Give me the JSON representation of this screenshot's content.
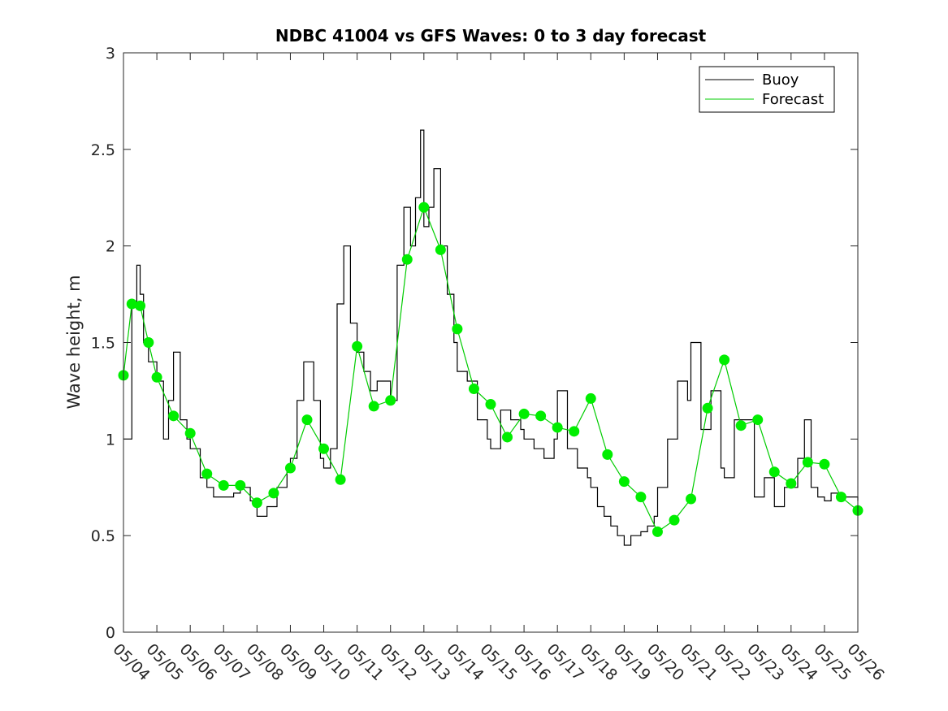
{
  "chart_data": {
    "type": "line",
    "title": "NDBC 41004 vs GFS Waves: 0 to 3 day forecast",
    "xlabel": "",
    "ylabel": "Wave height, m",
    "x_ticks": [
      "05/04",
      "05/05",
      "05/06",
      "05/07",
      "05/08",
      "05/09",
      "05/10",
      "05/11",
      "05/12",
      "05/13",
      "05/14",
      "05/15",
      "05/16",
      "05/17",
      "05/18",
      "05/19",
      "05/20",
      "05/21",
      "05/22",
      "05/23",
      "05/24",
      "05/25",
      "05/26"
    ],
    "xlim_days": [
      0,
      22
    ],
    "ylim": [
      0,
      3
    ],
    "y_ticks": [
      "0",
      "0.5",
      "1",
      "1.5",
      "2",
      "2.5",
      "3"
    ],
    "grid": false,
    "legend_position": "top-right",
    "colors": {
      "buoy": "#000000",
      "forecast": "#00cc00",
      "marker": "#00ee00"
    },
    "series": [
      {
        "name": "Buoy",
        "x": [
          0,
          0.25,
          0.4,
          0.5,
          0.6,
          0.75,
          1,
          1.2,
          1.35,
          1.5,
          1.7,
          1.9,
          2,
          2.3,
          2.5,
          2.7,
          3,
          3.3,
          3.5,
          3.8,
          4,
          4.3,
          4.6,
          4.9,
          5,
          5.2,
          5.4,
          5.7,
          5.9,
          6,
          6.2,
          6.4,
          6.6,
          6.8,
          7,
          7.2,
          7.4,
          7.6,
          7.8,
          8,
          8.2,
          8.4,
          8.6,
          8.75,
          8.9,
          9,
          9.15,
          9.3,
          9.5,
          9.7,
          9.9,
          10,
          10.3,
          10.6,
          10.9,
          11,
          11.3,
          11.6,
          11.9,
          12,
          12.3,
          12.6,
          12.9,
          13,
          13.3,
          13.6,
          13.9,
          14,
          14.2,
          14.4,
          14.6,
          14.8,
          15,
          15.2,
          15.5,
          15.7,
          15.9,
          16,
          16.3,
          16.6,
          16.9,
          17,
          17.3,
          17.6,
          17.9,
          18,
          18.3,
          18.6,
          18.9,
          19,
          19.2,
          19.5,
          19.8,
          20,
          20.2,
          20.4,
          20.6,
          20.8,
          21,
          21.2,
          21.5,
          21.8,
          22
        ],
        "values": [
          1.0,
          1.7,
          1.9,
          1.75,
          1.5,
          1.4,
          1.3,
          1.0,
          1.2,
          1.45,
          1.1,
          1.0,
          0.95,
          0.8,
          0.75,
          0.7,
          0.7,
          0.72,
          0.75,
          0.68,
          0.6,
          0.65,
          0.75,
          0.85,
          0.9,
          1.2,
          1.4,
          1.2,
          0.9,
          0.85,
          0.95,
          1.7,
          2.0,
          1.6,
          1.45,
          1.35,
          1.25,
          1.3,
          1.3,
          1.2,
          1.9,
          2.2,
          2.0,
          2.25,
          2.6,
          2.1,
          2.2,
          2.4,
          2.0,
          1.75,
          1.5,
          1.35,
          1.3,
          1.1,
          1.0,
          0.95,
          1.15,
          1.1,
          1.05,
          1.0,
          0.95,
          0.9,
          1.0,
          1.25,
          0.95,
          0.85,
          0.8,
          0.75,
          0.65,
          0.6,
          0.55,
          0.5,
          0.45,
          0.5,
          0.52,
          0.55,
          0.6,
          0.75,
          1.0,
          1.3,
          1.2,
          1.5,
          1.05,
          1.25,
          0.85,
          0.8,
          1.1,
          1.1,
          0.7,
          0.7,
          0.8,
          0.65,
          0.75,
          0.75,
          0.9,
          1.1,
          0.75,
          0.7,
          0.68,
          0.72,
          0.7,
          0.7,
          0.68
        ]
      },
      {
        "name": "Forecast",
        "x": [
          0,
          0.25,
          0.5,
          0.75,
          1,
          1.5,
          2,
          2.5,
          3,
          3.5,
          4,
          4.5,
          5,
          5.5,
          6,
          6.5,
          7,
          7.5,
          8,
          8.5,
          9,
          9.5,
          10,
          10.5,
          11,
          11.5,
          12,
          12.5,
          13,
          13.5,
          14,
          14.5,
          15,
          15.5,
          16,
          16.5,
          17,
          17.5,
          18,
          18.5,
          19,
          19.5,
          20,
          20.5,
          21,
          21.5,
          22
        ],
        "values": [
          1.33,
          1.7,
          1.69,
          1.5,
          1.32,
          1.12,
          1.03,
          0.82,
          0.76,
          0.76,
          0.67,
          0.72,
          0.85,
          1.1,
          0.95,
          0.79,
          1.48,
          1.17,
          1.2,
          1.93,
          2.2,
          1.98,
          1.57,
          1.26,
          1.18,
          1.01,
          1.13,
          1.12,
          1.06,
          1.04,
          1.21,
          0.92,
          0.78,
          0.7,
          0.52,
          0.58,
          0.69,
          1.16,
          1.41,
          1.07,
          1.1,
          0.83,
          0.77,
          0.88,
          0.87,
          0.7,
          0.63
        ]
      }
    ]
  },
  "legend": {
    "buoy_label": "Buoy",
    "forecast_label": "Forecast"
  }
}
